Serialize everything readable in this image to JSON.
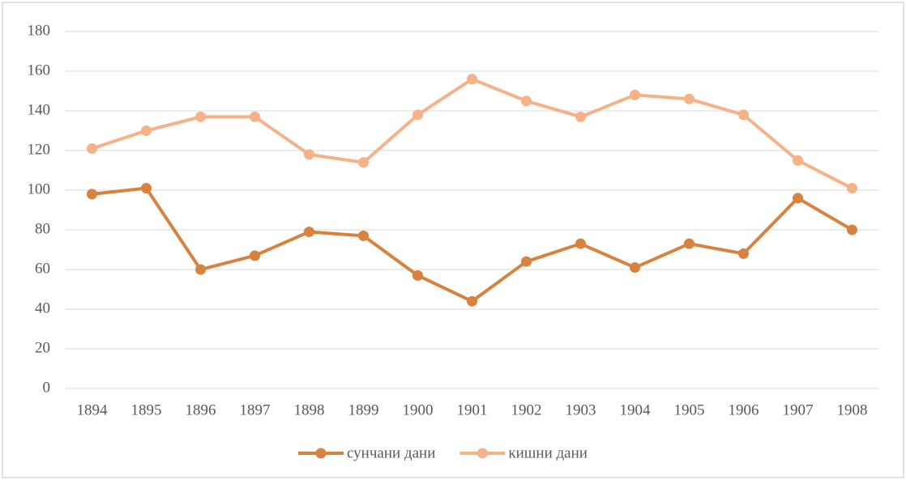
{
  "chart_data": {
    "type": "line",
    "categories": [
      "1894",
      "1895",
      "1896",
      "1897",
      "1898",
      "1899",
      "1900",
      "1901",
      "1902",
      "1903",
      "1904",
      "1905",
      "1906",
      "1907",
      "1908"
    ],
    "series": [
      {
        "name": "сунчани дани",
        "color": "#d8823f",
        "values": [
          98,
          101,
          60,
          67,
          79,
          77,
          57,
          44,
          64,
          73,
          61,
          73,
          68,
          96,
          80
        ]
      },
      {
        "name": "кишни дани",
        "color": "#f5b187",
        "values": [
          121,
          130,
          137,
          137,
          118,
          114,
          138,
          156,
          145,
          137,
          148,
          146,
          138,
          115,
          101
        ]
      }
    ],
    "ylim": [
      0,
      180
    ],
    "yticks": [
      0,
      20,
      40,
      60,
      80,
      100,
      120,
      140,
      160,
      180
    ],
    "grid": true,
    "legend": "bottom"
  }
}
